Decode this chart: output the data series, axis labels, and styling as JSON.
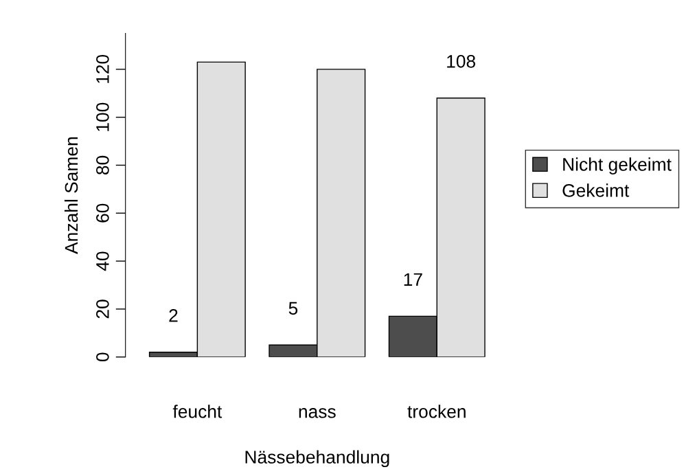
{
  "chart_data": {
    "type": "bar",
    "xlabel": "Nässebehandlung",
    "ylabel": "Anzahl Samen",
    "categories": [
      "feucht",
      "nass",
      "trocken"
    ],
    "series": [
      {
        "name": "Nicht gekeimt",
        "color": "#4d4d4d",
        "values": [
          2,
          5,
          17
        ],
        "value_labels": [
          "2",
          "5",
          "17"
        ]
      },
      {
        "name": "Gekeimt",
        "color": "#e0e0e0",
        "values": [
          123,
          120,
          108
        ],
        "value_labels": [
          null,
          null,
          "108"
        ]
      }
    ],
    "ylim": [
      0,
      135
    ],
    "yticks": [
      0,
      20,
      40,
      60,
      80,
      100,
      120
    ],
    "grid": false,
    "legend": "right"
  }
}
